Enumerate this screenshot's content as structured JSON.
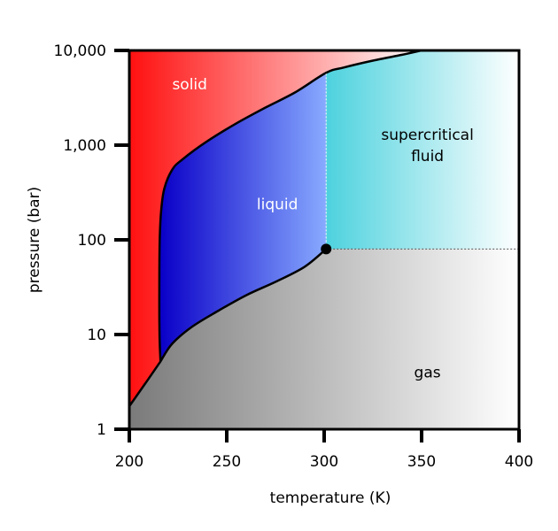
{
  "chart_data": {
    "type": "phase-diagram",
    "xlabel": "temperature (K)",
    "ylabel": "pressure (bar)",
    "xlim": [
      200,
      400
    ],
    "ylim": [
      1,
      10000
    ],
    "y_scale": "log",
    "grid": false,
    "x_ticks": [
      {
        "value": 200,
        "label": "200"
      },
      {
        "value": 250,
        "label": "250"
      },
      {
        "value": 300,
        "label": "300"
      },
      {
        "value": 350,
        "label": "350"
      },
      {
        "value": 400,
        "label": "400"
      }
    ],
    "y_ticks": [
      {
        "value": 1,
        "label": "1"
      },
      {
        "value": 10,
        "label": "10"
      },
      {
        "value": 100,
        "label": "100"
      },
      {
        "value": 1000,
        "label": "1,000"
      },
      {
        "value": 10000,
        "label": "10,000"
      }
    ],
    "critical_point": {
      "T": 301,
      "P": 80
    },
    "boundaries": {
      "sublimation": [
        [
          200,
          1.75
        ],
        [
          208,
          3.0
        ],
        [
          216,
          5.2
        ]
      ],
      "melting_lower": [
        [
          216,
          5.2
        ],
        [
          215.5,
          10
        ],
        [
          215.4,
          30
        ],
        [
          215.6,
          100
        ],
        [
          216.3,
          200
        ],
        [
          218,
          350
        ],
        [
          222,
          550
        ],
        [
          227,
          700
        ],
        [
          240,
          1100
        ],
        [
          255,
          1700
        ],
        [
          270,
          2500
        ],
        [
          285,
          3600
        ],
        [
          301,
          5800
        ]
      ],
      "melting_upper": [
        [
          301,
          5800
        ],
        [
          310,
          6600
        ],
        [
          325,
          7800
        ],
        [
          340,
          9000
        ],
        [
          350,
          10000
        ]
      ],
      "vaporization": [
        [
          216,
          5.2
        ],
        [
          222,
          8
        ],
        [
          232,
          12
        ],
        [
          245,
          17.5
        ],
        [
          260,
          26
        ],
        [
          275,
          36
        ],
        [
          290,
          52
        ],
        [
          301,
          80
        ]
      ],
      "supercritical_vertical": [
        [
          301,
          80
        ],
        [
          301,
          5800
        ]
      ],
      "supercritical_horizontal": [
        [
          301,
          80
        ],
        [
          400,
          80
        ]
      ]
    },
    "regions": [
      {
        "name": "solid",
        "label": "solid",
        "label_at": [
          231,
          4400
        ]
      },
      {
        "name": "liquid",
        "label": "liquid",
        "label_at": [
          276,
          240
        ]
      },
      {
        "name": "supercritical",
        "label_lines": [
          "supercritical",
          "fluid"
        ],
        "label_at": [
          353,
          1000
        ]
      },
      {
        "name": "gas",
        "label": "gas",
        "label_at": [
          353,
          4.0
        ]
      }
    ],
    "colors": {
      "solid_start": "#ff1010",
      "solid_end": "#ffffff",
      "liquid_start": "#0a00c8",
      "liquid_end": "#88aaff",
      "supercritical_start": "#4dd2de",
      "supercritical_end": "#ffffff",
      "gas_start": "#7a7a7a",
      "gas_end": "#ffffff",
      "solid_label": "#ffffff",
      "liquid_label": "#ffffff",
      "supercritical_label": "#000000",
      "gas_label": "#000000"
    }
  }
}
